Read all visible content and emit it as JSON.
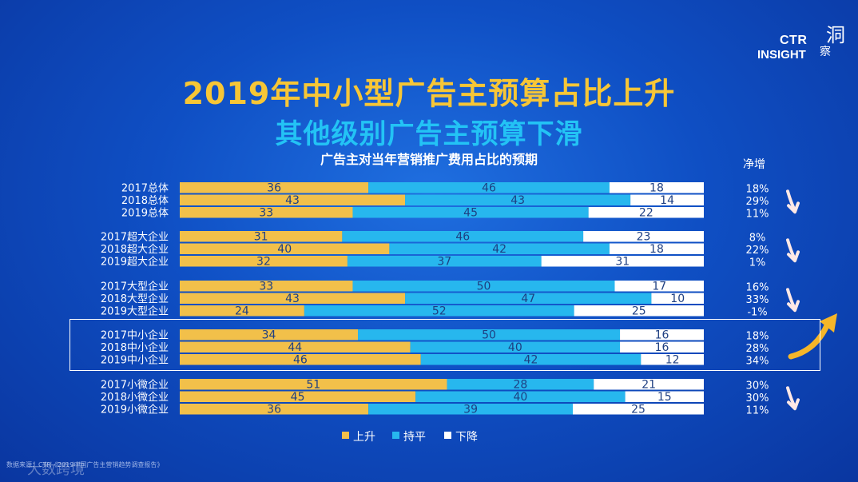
{
  "logo": {
    "brand": "CTR",
    "sub": "INSIGHT",
    "cn1": "洞",
    "cn2": "察"
  },
  "title_line1": "2019年中小型广告主预算占比上升",
  "title_line2": "其他级别广告主预算下滑",
  "net_header": "净增",
  "legend": {
    "up": "上升",
    "flat": "持平",
    "down": "下降"
  },
  "source": "数据来源：CTR《2019中国广告主营销趋势调查报告》",
  "watermark": "大数跨境",
  "colors": {
    "up": "#f2c04a",
    "flat": "#27b7ee",
    "down": "#ffffff",
    "label_text": "#1e3f82",
    "arrow_white": "#ffe8e6",
    "arrow_gold": "#f5b629"
  },
  "chart_data": {
    "type": "bar",
    "stacked": true,
    "orientation": "horizontal",
    "title": "广告主对当年营销推广费用占比的预期",
    "xlim": [
      0,
      100
    ],
    "series_names": [
      "上升",
      "持平",
      "下降"
    ],
    "groups": [
      {
        "trend": "down",
        "rows": [
          {
            "label": "2017总体",
            "values": [
              36,
              46,
              18
            ],
            "net": "18%"
          },
          {
            "label": "2018总体",
            "values": [
              43,
              43,
              14
            ],
            "net": "29%"
          },
          {
            "label": "2019总体",
            "values": [
              33,
              45,
              22
            ],
            "net": "11%"
          }
        ]
      },
      {
        "trend": "down",
        "rows": [
          {
            "label": "2017超大企业",
            "values": [
              31,
              46,
              23
            ],
            "net": "8%"
          },
          {
            "label": "2018超大企业",
            "values": [
              40,
              42,
              18
            ],
            "net": "22%"
          },
          {
            "label": "2019超大企业",
            "values": [
              32,
              37,
              31
            ],
            "net": "1%"
          }
        ]
      },
      {
        "trend": "down",
        "rows": [
          {
            "label": "2017大型企业",
            "values": [
              33,
              50,
              17
            ],
            "net": "16%"
          },
          {
            "label": "2018大型企业",
            "values": [
              43,
              47,
              10
            ],
            "net": "33%"
          },
          {
            "label": "2019大型企业",
            "values": [
              24,
              52,
              25
            ],
            "net": "-1%"
          }
        ]
      },
      {
        "trend": "up",
        "highlight": true,
        "rows": [
          {
            "label": "2017中小企业",
            "values": [
              34,
              50,
              16
            ],
            "net": "18%"
          },
          {
            "label": "2018中小企业",
            "values": [
              44,
              40,
              16
            ],
            "net": "28%"
          },
          {
            "label": "2019中小企业",
            "values": [
              46,
              42,
              12
            ],
            "net": "34%"
          }
        ]
      },
      {
        "trend": "down",
        "rows": [
          {
            "label": "2017小微企业",
            "values": [
              51,
              28,
              21
            ],
            "net": "30%"
          },
          {
            "label": "2018小微企业",
            "values": [
              45,
              40,
              15
            ],
            "net": "30%"
          },
          {
            "label": "2019小微企业",
            "values": [
              36,
              39,
              25
            ],
            "net": "11%"
          }
        ]
      }
    ]
  }
}
